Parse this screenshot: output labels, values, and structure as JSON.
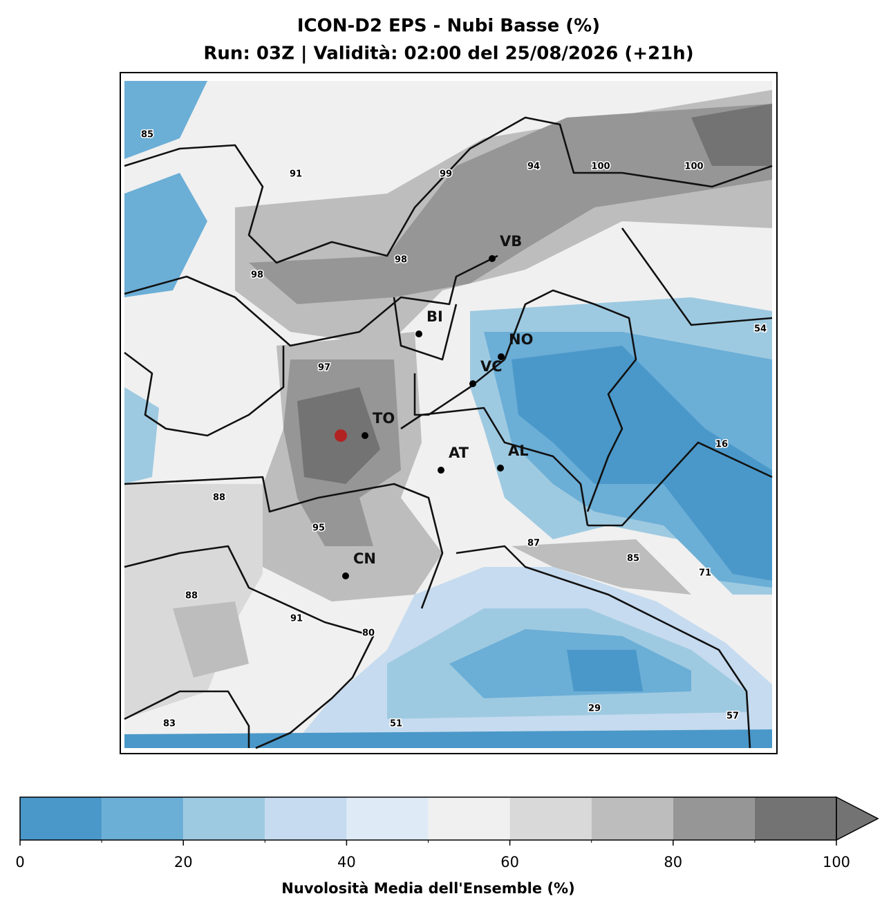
{
  "title": "ICON-D2 EPS - Nubi Basse (%)",
  "subtitle": "Run: 03Z | Validità: 02:00 del 25/08/2026 (+21h)",
  "cities": [
    "VB",
    "BI",
    "NO",
    "VC",
    "TO",
    "AT",
    "AL",
    "CN"
  ],
  "contour_labels": [
    "85",
    "91",
    "99",
    "94",
    "100",
    "100",
    "98",
    "98",
    "54",
    "97",
    "16",
    "88",
    "95",
    "87",
    "85",
    "71",
    "88",
    "91",
    "80",
    "29",
    "57",
    "83",
    "51"
  ],
  "colorbar": {
    "label": "Nuvolosità Media dell'Ensemble (%)",
    "bounds": [
      0,
      10,
      20,
      30,
      40,
      50,
      60,
      70,
      80,
      90,
      100
    ],
    "ticks": [
      0,
      20,
      40,
      60,
      80,
      100
    ],
    "colors": [
      "#4a98c9",
      "#6baed6",
      "#9ecae1",
      "#c6dbef",
      "#deebf7",
      "#f0f0f0",
      "#d9d9d9",
      "#bdbdbd",
      "#969696",
      "#737373"
    ]
  }
}
